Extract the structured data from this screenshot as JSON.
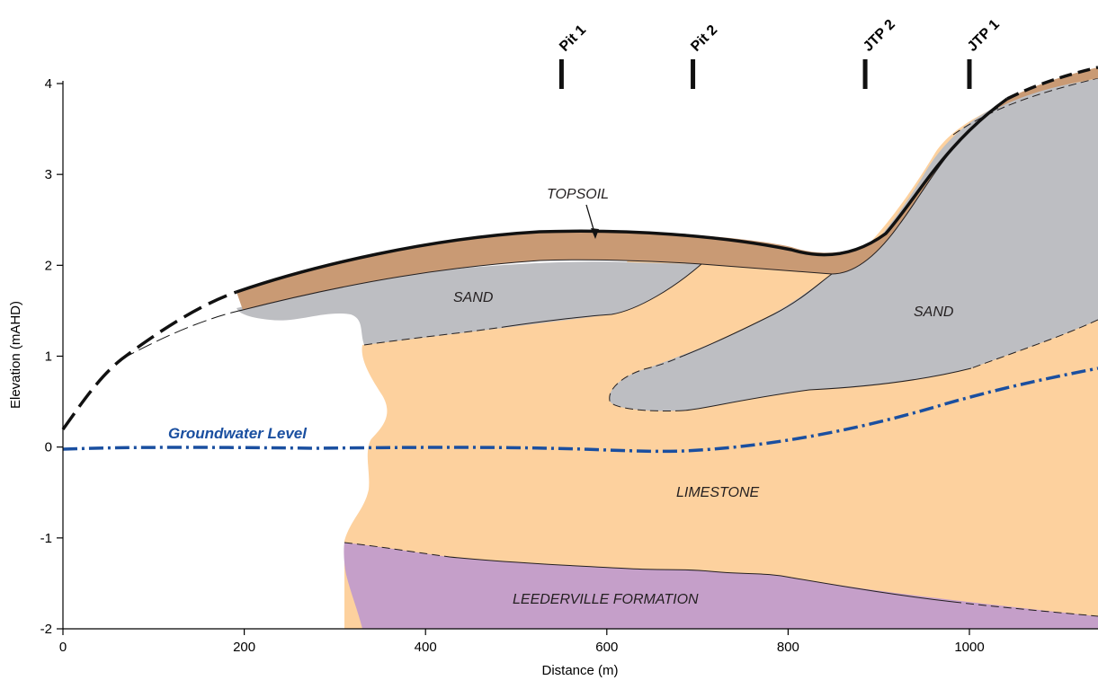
{
  "figure": {
    "x_axis": {
      "title": "Distance (m)",
      "ticks": [
        {
          "value": 0,
          "label": "0"
        },
        {
          "value": 200,
          "label": "200"
        },
        {
          "value": 400,
          "label": "400"
        },
        {
          "value": 600,
          "label": "600"
        },
        {
          "value": 800,
          "label": "800"
        },
        {
          "value": 1000,
          "label": "1000"
        }
      ],
      "range": [
        0,
        1140
      ]
    },
    "y_axis": {
      "title": "Elevation (mAHD)",
      "ticks": [
        {
          "value": 4,
          "label": "4"
        },
        {
          "value": 3,
          "label": "3"
        },
        {
          "value": 2,
          "label": "2"
        },
        {
          "value": 1,
          "label": "1"
        },
        {
          "value": 0,
          "label": "0"
        },
        {
          "value": -1,
          "label": "-1"
        },
        {
          "value": -2,
          "label": "-2"
        }
      ],
      "range": [
        -2,
        4
      ]
    },
    "boreholes": [
      {
        "name": "Pit 1",
        "distance": 550
      },
      {
        "name": "Pit 2",
        "distance": 695
      },
      {
        "name": "JTP 2",
        "distance": 885
      },
      {
        "name": "JTP 1",
        "distance": 1000
      }
    ],
    "unit_labels": {
      "topsoil": "TOPSOIL",
      "sand_left": "SAND",
      "sand_right": "SAND",
      "limestone": "LIMESTONE",
      "leederville": "LEEDERVILLE FORMATION"
    },
    "groundwater_label": "Groundwater Level",
    "colors": {
      "topsoil": "#c99a74",
      "sand": "#bdbec2",
      "limestone": "#fdd19e",
      "leederville": "#c59fc9",
      "groundwater": "#1a4fa0"
    }
  }
}
